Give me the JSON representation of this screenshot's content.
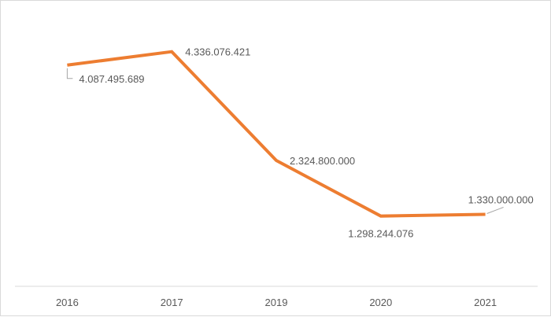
{
  "chart_data": {
    "type": "line",
    "title": "",
    "xlabel": "",
    "ylabel": "",
    "categories": [
      "2016",
      "2017",
      "2019",
      "2020",
      "2021"
    ],
    "series": [
      {
        "values": [
          4087495689,
          4336076421,
          2324800000,
          1298244076,
          1330000000
        ],
        "labels": [
          "4.087.495.689",
          "4.336.076.421",
          "2.324.800.000",
          "1.298.244.076",
          "1.330.000.000"
        ]
      }
    ],
    "ylim": [
      0,
      5000000000
    ],
    "grid": false,
    "legend": "none",
    "colors": {
      "line": "#ED7D31",
      "axis": "#D9D9D9",
      "text": "#595959"
    }
  }
}
